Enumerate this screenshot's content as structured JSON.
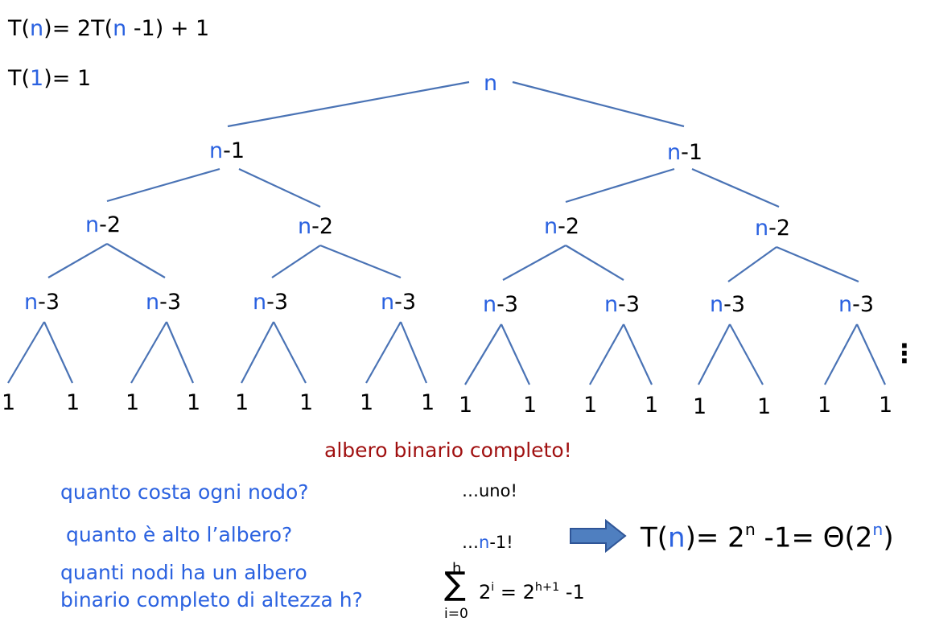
{
  "recurrence": {
    "line1": {
      "t": "T(",
      "n": "n",
      "rest1": ")= 2T(",
      "n2": "n",
      "rest2": " -1) + 1"
    },
    "line2": {
      "t": "T(",
      "one": "1",
      "rest": ")= 1"
    }
  },
  "tree": {
    "root": "n",
    "level1": {
      "n": "n",
      "suffix": "-1"
    },
    "level2": {
      "n": "n",
      "suffix": "-2"
    },
    "level3": {
      "n": "n",
      "suffix": "-3"
    },
    "leaf": "1",
    "ellipsis": "⋮"
  },
  "caption": "albero binario completo!",
  "questions": {
    "q1": "quanto costa ogni nodo?",
    "q2": "quanto è alto l’albero?",
    "q3_line1": "quanti nodi ha un albero",
    "q3_line2": "binario completo di altezza h?"
  },
  "answers": {
    "a1": "…uno!",
    "a2_prefix": "…",
    "a2_n": "n",
    "a2_suffix": "-1!"
  },
  "sum_formula": {
    "sigma": "∑",
    "upper": "h",
    "lower": "i=0",
    "base": "2",
    "exp": "i",
    "eq": " = 2",
    "exp2": "h+1",
    "tail": " -1"
  },
  "result": {
    "t": "T(",
    "n": "n",
    "mid": ")= 2",
    "exp": "n",
    "mid2": " -1= Θ(2",
    "exp2": "n",
    "end": ")"
  },
  "colors": {
    "accent": "#2b62e0",
    "edge": "#4a73b5",
    "caption": "#a01010",
    "arrow": "#4f7fc0"
  }
}
